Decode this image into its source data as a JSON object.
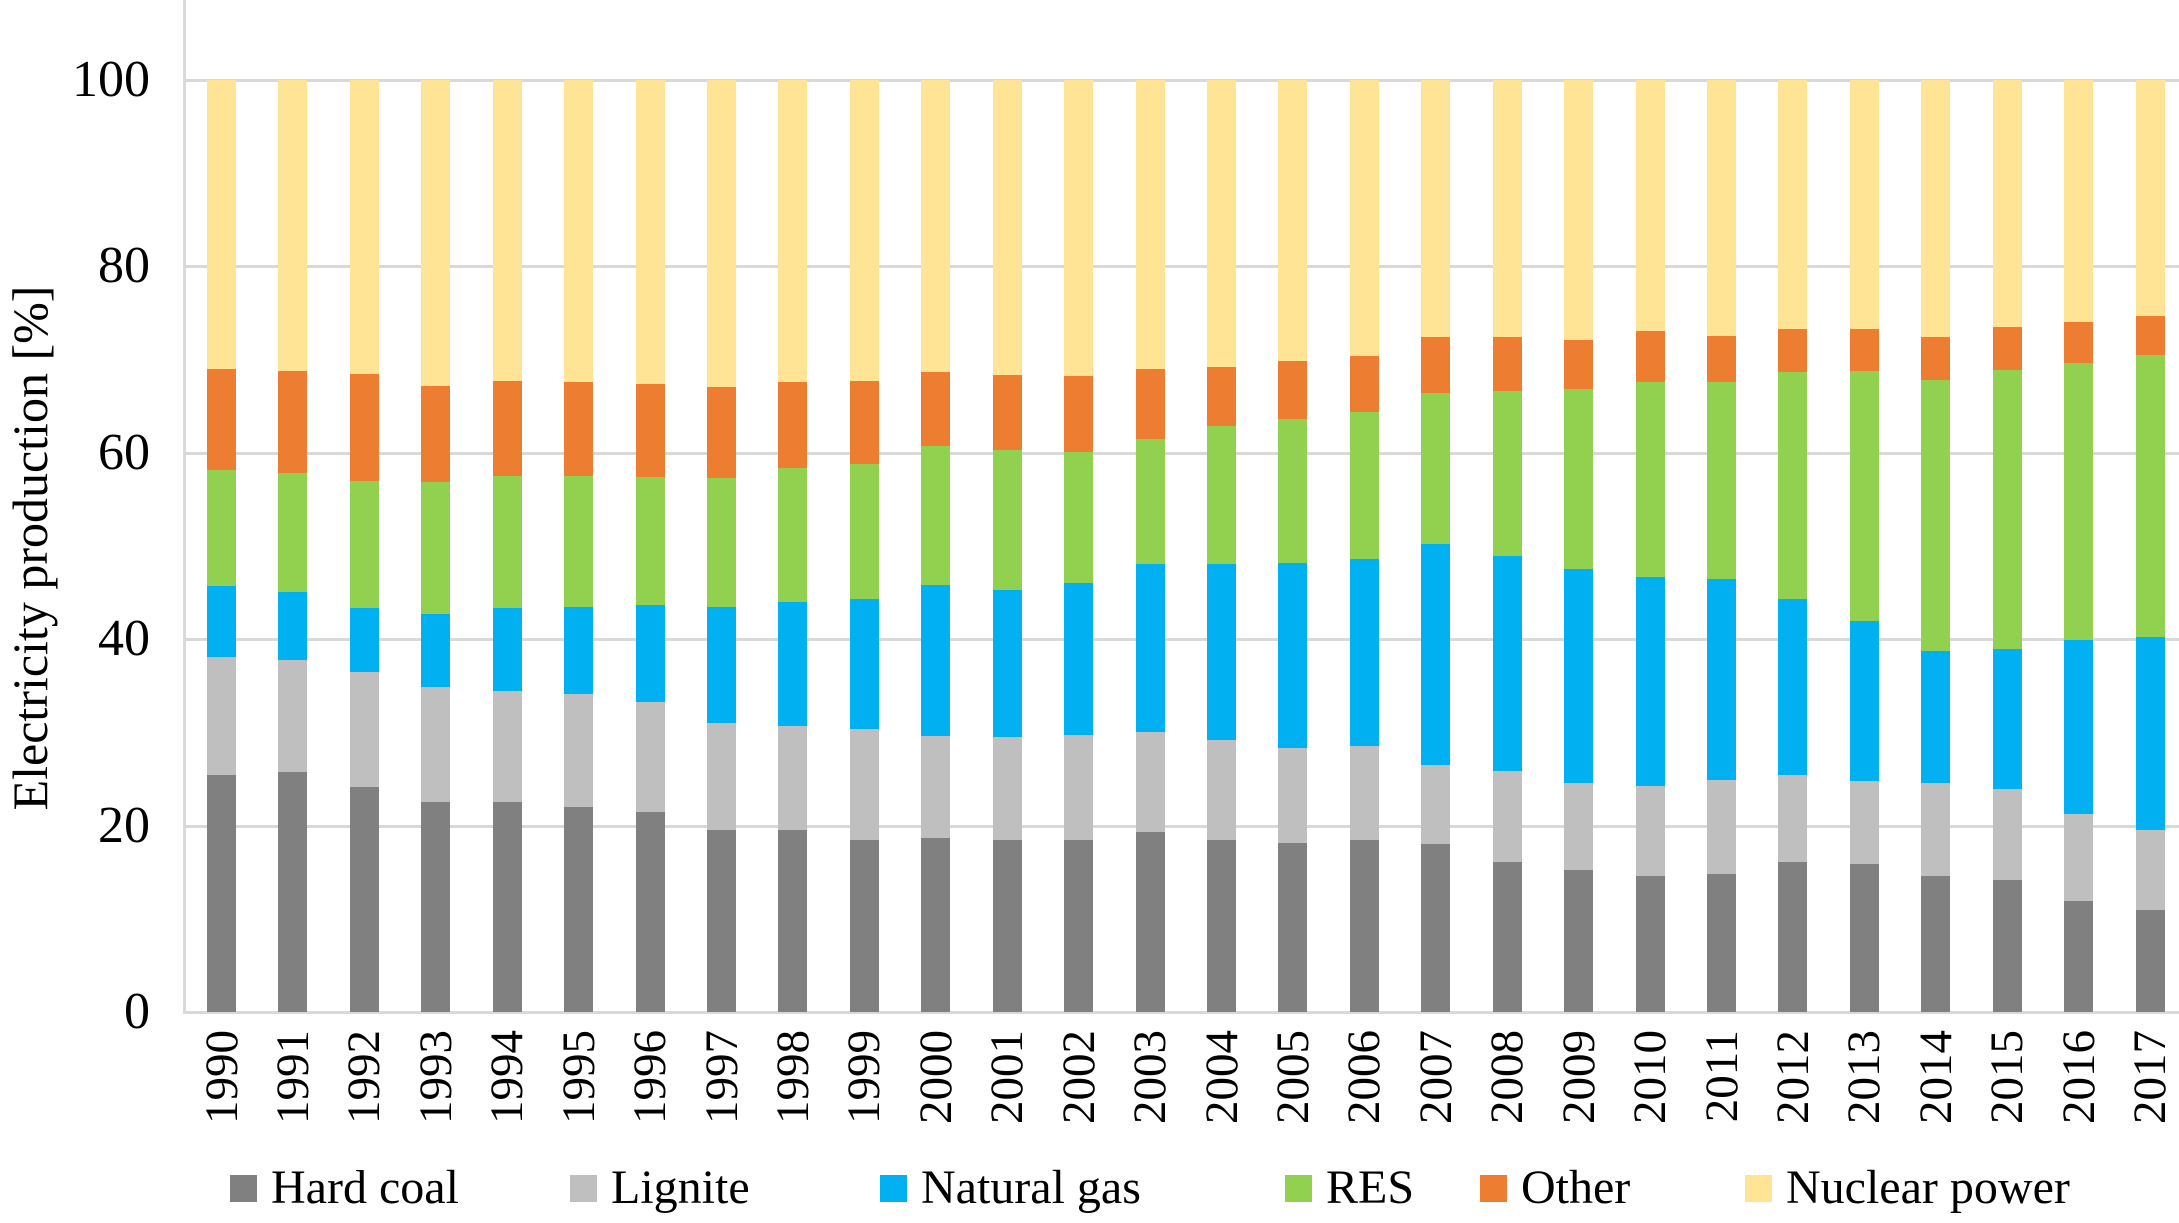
{
  "chart_data": {
    "type": "bar",
    "stacked": true,
    "orientation": "vertical",
    "title": "",
    "xlabel": "",
    "ylabel": "Electricity  production  [%]",
    "ylim": [
      0,
      100
    ],
    "yticks": [
      "0",
      "20",
      "40",
      "60",
      "80",
      "100"
    ],
    "grid": true,
    "legend_position": "bottom",
    "categories": [
      "1990",
      "1991",
      "1992",
      "1993",
      "1994",
      "1995",
      "1996",
      "1997",
      "1998",
      "1999",
      "2000",
      "2001",
      "2002",
      "2003",
      "2004",
      "2005",
      "2006",
      "2007",
      "2008",
      "2009",
      "2010",
      "2011",
      "2012",
      "2013",
      "2014",
      "2015",
      "2016",
      "2017"
    ],
    "series": [
      {
        "name": "Hard coal",
        "color": "#808080",
        "values": [
          25.4,
          25.7,
          24.1,
          22.5,
          22.5,
          22.0,
          21.4,
          19.5,
          19.5,
          18.5,
          18.7,
          18.4,
          18.5,
          19.3,
          18.5,
          18.1,
          18.4,
          18.0,
          16.1,
          15.2,
          14.6,
          14.8,
          16.1,
          15.9,
          14.6,
          14.2,
          11.9,
          10.9
        ]
      },
      {
        "name": "Lignite",
        "color": "#BFBFBF",
        "values": [
          12.7,
          12.1,
          12.4,
          12.4,
          11.9,
          12.1,
          11.8,
          11.5,
          11.2,
          11.8,
          10.9,
          11.1,
          11.2,
          10.7,
          10.7,
          10.2,
          10.1,
          8.5,
          9.7,
          9.4,
          9.6,
          10.1,
          9.3,
          8.9,
          10.0,
          9.7,
          9.3,
          8.6
        ]
      },
      {
        "name": "Natural gas",
        "color": "#00B0F0",
        "values": [
          7.6,
          7.2,
          6.8,
          7.8,
          8.9,
          9.3,
          10.4,
          12.4,
          13.3,
          14.0,
          16.2,
          15.8,
          16.3,
          18.0,
          18.8,
          19.9,
          20.1,
          23.7,
          23.1,
          22.9,
          22.5,
          21.5,
          18.9,
          17.1,
          14.1,
          15.0,
          18.7,
          20.7
        ]
      },
      {
        "name": "RES",
        "color": "#92D050",
        "values": [
          12.4,
          12.8,
          13.7,
          14.1,
          14.2,
          14.1,
          13.8,
          13.9,
          14.3,
          14.5,
          14.9,
          15.0,
          14.1,
          13.5,
          14.9,
          15.4,
          15.7,
          16.2,
          17.7,
          19.3,
          20.9,
          21.2,
          24.3,
          26.8,
          29.1,
          29.9,
          29.7,
          30.3
        ]
      },
      {
        "name": "Other",
        "color": "#ED7D31",
        "values": [
          10.9,
          10.9,
          11.4,
          10.3,
          10.2,
          10.1,
          9.9,
          9.7,
          9.3,
          8.9,
          7.9,
          8.0,
          8.1,
          7.5,
          6.3,
          6.2,
          6.1,
          6.0,
          5.8,
          5.3,
          5.4,
          4.9,
          4.6,
          4.6,
          4.6,
          4.7,
          4.4,
          4.1
        ]
      },
      {
        "name": "Nuclear power",
        "color": "#FFE495",
        "values": [
          31.0,
          31.3,
          31.6,
          32.9,
          32.3,
          32.4,
          32.7,
          33.0,
          32.4,
          32.3,
          31.4,
          31.7,
          31.8,
          31.0,
          30.8,
          30.2,
          29.6,
          27.6,
          27.6,
          27.9,
          27.0,
          27.5,
          26.8,
          26.7,
          27.6,
          26.5,
          26.0,
          25.4
        ]
      }
    ]
  },
  "legend": {
    "items": [
      {
        "label": "Hard coal"
      },
      {
        "label": "Lignite"
      },
      {
        "label": "Natural gas"
      },
      {
        "label": "RES"
      },
      {
        "label": "Other"
      },
      {
        "label": "Nuclear power"
      }
    ]
  },
  "colors": {
    "gridline": "#D9D9D9",
    "axis_line": "#D9D9D9",
    "text": "#000000",
    "background": "#FFFFFF"
  }
}
